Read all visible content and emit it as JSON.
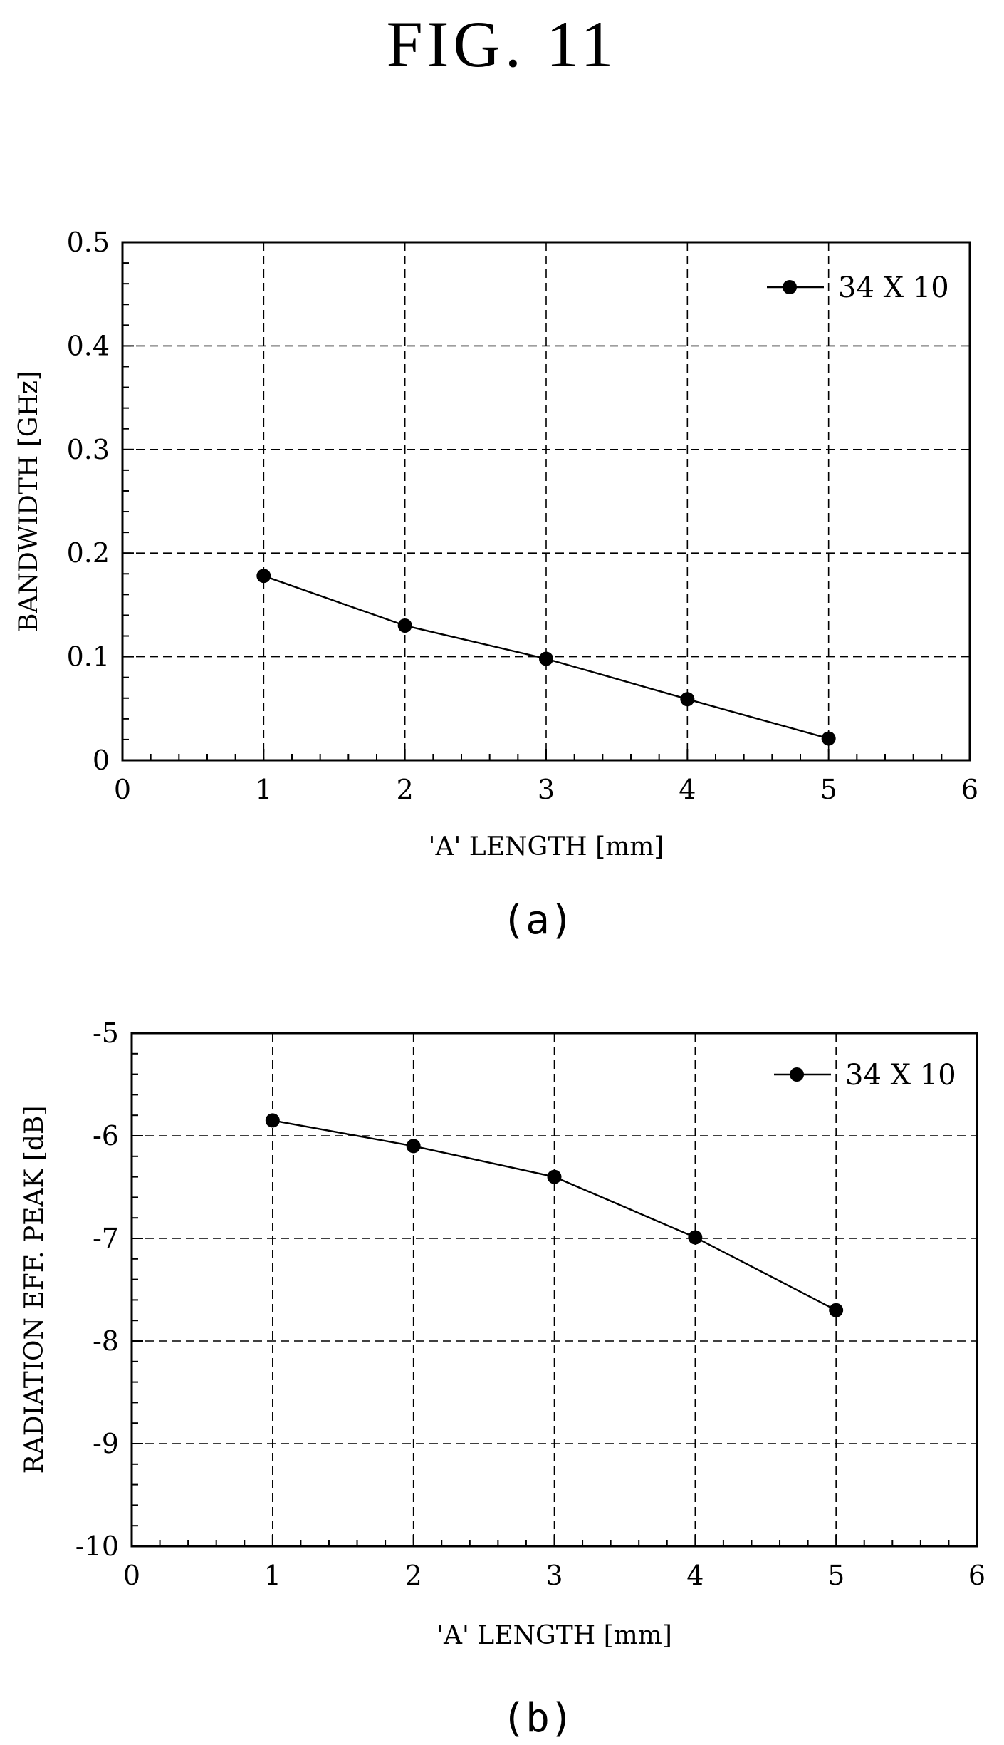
{
  "figure": {
    "title": "FIG. 11"
  },
  "chart_data": [
    {
      "type": "line",
      "panel_label": "(a)",
      "xlabel": "'A' LENGTH [mm]",
      "ylabel": "BANDWIDTH [GHz]",
      "xlim": [
        0,
        6
      ],
      "ylim": [
        0,
        0.5
      ],
      "x_ticks": [
        0,
        1,
        2,
        3,
        4,
        5,
        6
      ],
      "x_tick_labels": [
        "0",
        "1",
        "2",
        "3",
        "4",
        "5",
        "6"
      ],
      "y_ticks": [
        0,
        0.1,
        0.2,
        0.3,
        0.4,
        0.5
      ],
      "y_tick_labels": [
        "0",
        "0.1",
        "0.2",
        "0.3",
        "0.4",
        "0.5"
      ],
      "grid": true,
      "legend_position": "top-right",
      "series": [
        {
          "name": "34 X 10",
          "x": [
            1,
            2,
            3,
            4,
            5
          ],
          "y": [
            0.178,
            0.13,
            0.098,
            0.059,
            0.021
          ]
        }
      ]
    },
    {
      "type": "line",
      "panel_label": "(b)",
      "xlabel": "'A' LENGTH [mm]",
      "ylabel": "RADIATION EFF. PEAK [dB]",
      "xlim": [
        0,
        6
      ],
      "ylim": [
        -10,
        -5
      ],
      "x_ticks": [
        0,
        1,
        2,
        3,
        4,
        5,
        6
      ],
      "x_tick_labels": [
        "0",
        "1",
        "2",
        "3",
        "4",
        "5",
        "6"
      ],
      "y_ticks": [
        -10,
        -9,
        -8,
        -7,
        -6,
        -5
      ],
      "y_tick_labels": [
        "-10",
        "-9",
        "-8",
        "-7",
        "-6",
        "-5"
      ],
      "grid": true,
      "legend_position": "top-right",
      "series": [
        {
          "name": "34 X 10",
          "x": [
            1,
            2,
            3,
            4,
            5
          ],
          "y": [
            -5.85,
            -6.1,
            -6.4,
            -6.99,
            -7.7
          ]
        }
      ]
    }
  ]
}
